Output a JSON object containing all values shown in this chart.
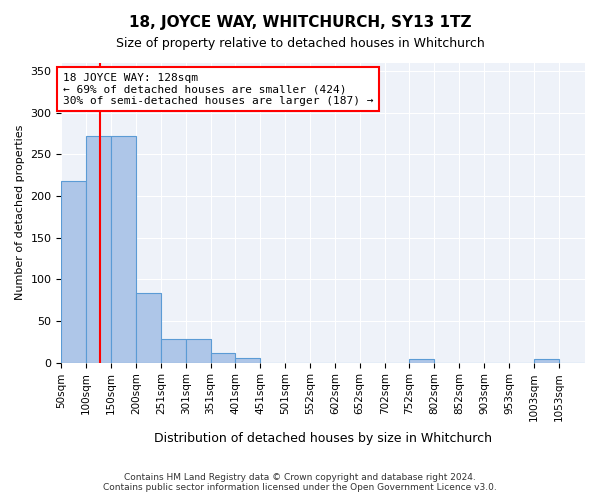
{
  "title": "18, JOYCE WAY, WHITCHURCH, SY13 1TZ",
  "subtitle": "Size of property relative to detached houses in Whitchurch",
  "xlabel": "Distribution of detached houses by size in Whitchurch",
  "ylabel": "Number of detached properties",
  "bar_labels": [
    "50sqm",
    "100sqm",
    "150sqm",
    "200sqm",
    "251sqm",
    "301sqm",
    "351sqm",
    "401sqm",
    "451sqm",
    "501sqm",
    "552sqm",
    "602sqm",
    "652sqm",
    "702sqm",
    "752sqm",
    "802sqm",
    "852sqm",
    "903sqm",
    "953sqm",
    "1003sqm",
    "1053sqm"
  ],
  "bar_values": [
    218,
    272,
    272,
    83,
    28,
    28,
    12,
    5,
    0,
    0,
    0,
    0,
    0,
    0,
    4,
    0,
    0,
    0,
    0,
    4,
    0
  ],
  "bar_color": "#aec6e8",
  "bar_edge_color": "#5b9bd5",
  "background_color": "#eef2f9",
  "annotation_text": "18 JOYCE WAY: 128sqm\n← 69% of detached houses are smaller (424)\n30% of semi-detached houses are larger (187) →",
  "red_line_x": 128,
  "x_min": 50,
  "x_max": 1103,
  "bin_width": 50,
  "ylim": [
    0,
    360
  ],
  "yticks": [
    0,
    50,
    100,
    150,
    200,
    250,
    300,
    350
  ],
  "footer_line1": "Contains HM Land Registry data © Crown copyright and database right 2024.",
  "footer_line2": "Contains public sector information licensed under the Open Government Licence v3.0."
}
